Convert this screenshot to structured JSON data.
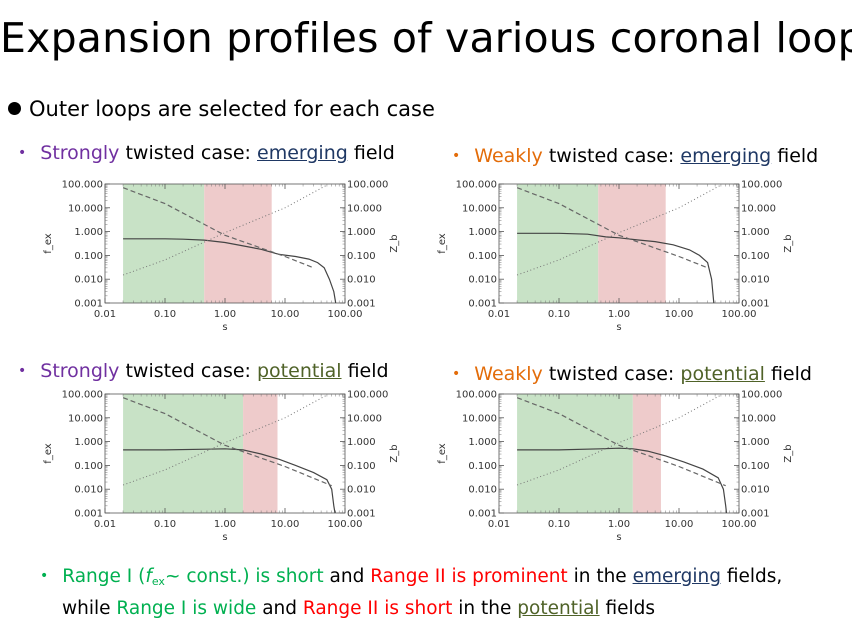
{
  "title": "Expansion profiles of various coronal loops",
  "intro": "Outer loops are selected for each case",
  "captions": [
    {
      "lead": "Strongly",
      "mid": " twisted case: ",
      "field": "emerging",
      "tail": " field"
    },
    {
      "lead": "Weakly",
      "mid": " twisted case: ",
      "field": "emerging",
      "tail": " field"
    },
    {
      "lead": "Strongly",
      "mid": " twisted case: ",
      "field": "potential",
      "tail": " field"
    },
    {
      "lead": "Weakly",
      "mid": " twisted case: ",
      "field": "potential",
      "tail": " field"
    }
  ],
  "summary": {
    "line1_a": "Range I (",
    "line1_f": "f",
    "line1_sub": "ex",
    "line1_b": "~ const.) is short",
    "line1_c": " and ",
    "line1_d": "Range II is prominent",
    "line1_e": " in the ",
    "line1_f2": "emerging",
    "line1_g": " fields,",
    "line2_a": "while ",
    "line2_b": "Range I is wide",
    "line2_c": " and ",
    "line2_d": "Range II is short",
    "line2_e": " in the ",
    "line2_f": "potential",
    "line2_g": " fields"
  },
  "colors": {
    "range1": "#c8e2c6",
    "range2": "#eecbcb",
    "purple": "#7030a0",
    "orange": "#e36c09"
  },
  "chart_data": [
    {
      "type": "line",
      "name": "strong-emerging",
      "xlabel": "s",
      "ylabel_left": "f_ex",
      "ylabel_right": "Z_b",
      "xscale": "log",
      "yscale": "log",
      "xlim": [
        0.01,
        100
      ],
      "ylim": [
        0.001,
        100
      ],
      "xticks": [
        "0.01",
        "0.10",
        "1.00",
        "10.00",
        "100.00"
      ],
      "yticks_left": [
        "0.001",
        "0.010",
        "0.100",
        "1.000",
        "10.000",
        "100.000"
      ],
      "yticks_right": [
        "0.001",
        "0.010",
        "0.100",
        "1.000",
        "10.000",
        "100.000"
      ],
      "range1": [
        0.02,
        0.45
      ],
      "range2": [
        0.45,
        6.0
      ],
      "series": [
        {
          "style": "solid",
          "points": [
            [
              0.02,
              0.5
            ],
            [
              0.05,
              0.5
            ],
            [
              0.1,
              0.5
            ],
            [
              0.2,
              0.48
            ],
            [
              0.45,
              0.44
            ],
            [
              1,
              0.35
            ],
            [
              2,
              0.25
            ],
            [
              4,
              0.18
            ],
            [
              8,
              0.11
            ],
            [
              15,
              0.09
            ],
            [
              25,
              0.07
            ],
            [
              35,
              0.05
            ],
            [
              45,
              0.03
            ],
            [
              55,
              0.01
            ],
            [
              65,
              0.003
            ],
            [
              70,
              0.001
            ]
          ]
        },
        {
          "style": "dashed",
          "points": [
            [
              0.02,
              70
            ],
            [
              0.1,
              15
            ],
            [
              1,
              0.7
            ],
            [
              10,
              0.09
            ],
            [
              30,
              0.03
            ]
          ]
        },
        {
          "style": "dotted",
          "points": [
            [
              0.02,
              0.015
            ],
            [
              0.1,
              0.065
            ],
            [
              1,
              0.9
            ],
            [
              10,
              10
            ],
            [
              50,
              90
            ]
          ]
        }
      ]
    },
    {
      "type": "line",
      "name": "weak-emerging",
      "xlabel": "s",
      "ylabel_left": "f_ex",
      "ylabel_right": "Z_b",
      "xscale": "log",
      "yscale": "log",
      "xlim": [
        0.01,
        100
      ],
      "ylim": [
        0.001,
        100
      ],
      "xticks": [
        "0.01",
        "0.10",
        "1.00",
        "10.00",
        "100.00"
      ],
      "yticks_left": [
        "0.001",
        "0.010",
        "0.100",
        "1.000",
        "10.000",
        "100.000"
      ],
      "yticks_right": [
        "0.001",
        "0.010",
        "0.100",
        "1.000",
        "10.000",
        "100.000"
      ],
      "range1": [
        0.02,
        0.45
      ],
      "range2": [
        0.45,
        6.0
      ],
      "series": [
        {
          "style": "solid",
          "points": [
            [
              0.02,
              0.85
            ],
            [
              0.1,
              0.85
            ],
            [
              0.3,
              0.78
            ],
            [
              0.6,
              0.6
            ],
            [
              1,
              0.55
            ],
            [
              2,
              0.45
            ],
            [
              4,
              0.38
            ],
            [
              8,
              0.28
            ],
            [
              15,
              0.17
            ],
            [
              22,
              0.1
            ],
            [
              30,
              0.05
            ],
            [
              35,
              0.01
            ],
            [
              38,
              0.001
            ]
          ]
        },
        {
          "style": "dashed",
          "points": [
            [
              0.02,
              70
            ],
            [
              0.1,
              15
            ],
            [
              1,
              0.7
            ],
            [
              10,
              0.09
            ],
            [
              30,
              0.03
            ]
          ]
        },
        {
          "style": "dotted",
          "points": [
            [
              0.02,
              0.015
            ],
            [
              0.1,
              0.065
            ],
            [
              1,
              0.9
            ],
            [
              10,
              10
            ],
            [
              50,
              90
            ]
          ]
        }
      ]
    },
    {
      "type": "line",
      "name": "strong-potential",
      "xlabel": "s",
      "ylabel_left": "f_ex",
      "ylabel_right": "Z_b",
      "xscale": "log",
      "yscale": "log",
      "xlim": [
        0.01,
        100
      ],
      "ylim": [
        0.001,
        100
      ],
      "xticks": [
        "0.01",
        "0.10",
        "1.00",
        "10.00",
        "100.00"
      ],
      "yticks_left": [
        "0.001",
        "0.010",
        "0.100",
        "1.000",
        "10.000",
        "100.000"
      ],
      "yticks_right": [
        "0.001",
        "0.010",
        "0.100",
        "1.000",
        "10.000",
        "100.000"
      ],
      "range1": [
        0.02,
        2.0
      ],
      "range2": [
        2.0,
        7.5
      ],
      "series": [
        {
          "style": "solid",
          "points": [
            [
              0.02,
              0.45
            ],
            [
              0.1,
              0.45
            ],
            [
              0.5,
              0.48
            ],
            [
              1,
              0.5
            ],
            [
              2,
              0.45
            ],
            [
              4,
              0.3
            ],
            [
              8,
              0.18
            ],
            [
              15,
              0.1
            ],
            [
              30,
              0.05
            ],
            [
              50,
              0.025
            ],
            [
              60,
              0.01
            ],
            [
              65,
              0.002
            ],
            [
              68,
              0.001
            ]
          ]
        },
        {
          "style": "dashed",
          "points": [
            [
              0.02,
              70
            ],
            [
              0.1,
              15
            ],
            [
              1,
              0.7
            ],
            [
              10,
              0.09
            ],
            [
              60,
              0.014
            ]
          ]
        },
        {
          "style": "dotted",
          "points": [
            [
              0.02,
              0.015
            ],
            [
              0.1,
              0.065
            ],
            [
              1,
              0.9
            ],
            [
              10,
              10
            ],
            [
              50,
              90
            ]
          ]
        }
      ]
    },
    {
      "type": "line",
      "name": "weak-potential",
      "xlabel": "s",
      "ylabel_left": "f_ex",
      "ylabel_right": "Z_b",
      "xscale": "log",
      "yscale": "log",
      "xlim": [
        0.01,
        100
      ],
      "ylim": [
        0.001,
        100
      ],
      "xticks": [
        "0.01",
        "0.10",
        "1.00",
        "10.00",
        "100.00"
      ],
      "yticks_left": [
        "0.001",
        "0.010",
        "0.100",
        "1.000",
        "10.000",
        "100.000"
      ],
      "yticks_right": [
        "0.001",
        "0.010",
        "0.100",
        "1.000",
        "10.000",
        "100.000"
      ],
      "range1": [
        0.02,
        1.7
      ],
      "range2": [
        1.7,
        5.0
      ],
      "series": [
        {
          "style": "solid",
          "points": [
            [
              0.02,
              0.45
            ],
            [
              0.1,
              0.45
            ],
            [
              0.5,
              0.5
            ],
            [
              1,
              0.53
            ],
            [
              1.7,
              0.5
            ],
            [
              3,
              0.4
            ],
            [
              6,
              0.25
            ],
            [
              12,
              0.14
            ],
            [
              25,
              0.07
            ],
            [
              45,
              0.03
            ],
            [
              55,
              0.01
            ],
            [
              60,
              0.002
            ],
            [
              62,
              0.001
            ]
          ]
        },
        {
          "style": "dashed",
          "points": [
            [
              0.02,
              70
            ],
            [
              0.1,
              15
            ],
            [
              1,
              0.7
            ],
            [
              10,
              0.09
            ],
            [
              60,
              0.014
            ]
          ]
        },
        {
          "style": "dotted",
          "points": [
            [
              0.02,
              0.015
            ],
            [
              0.1,
              0.065
            ],
            [
              1,
              0.9
            ],
            [
              10,
              10
            ],
            [
              50,
              90
            ]
          ]
        }
      ]
    }
  ]
}
